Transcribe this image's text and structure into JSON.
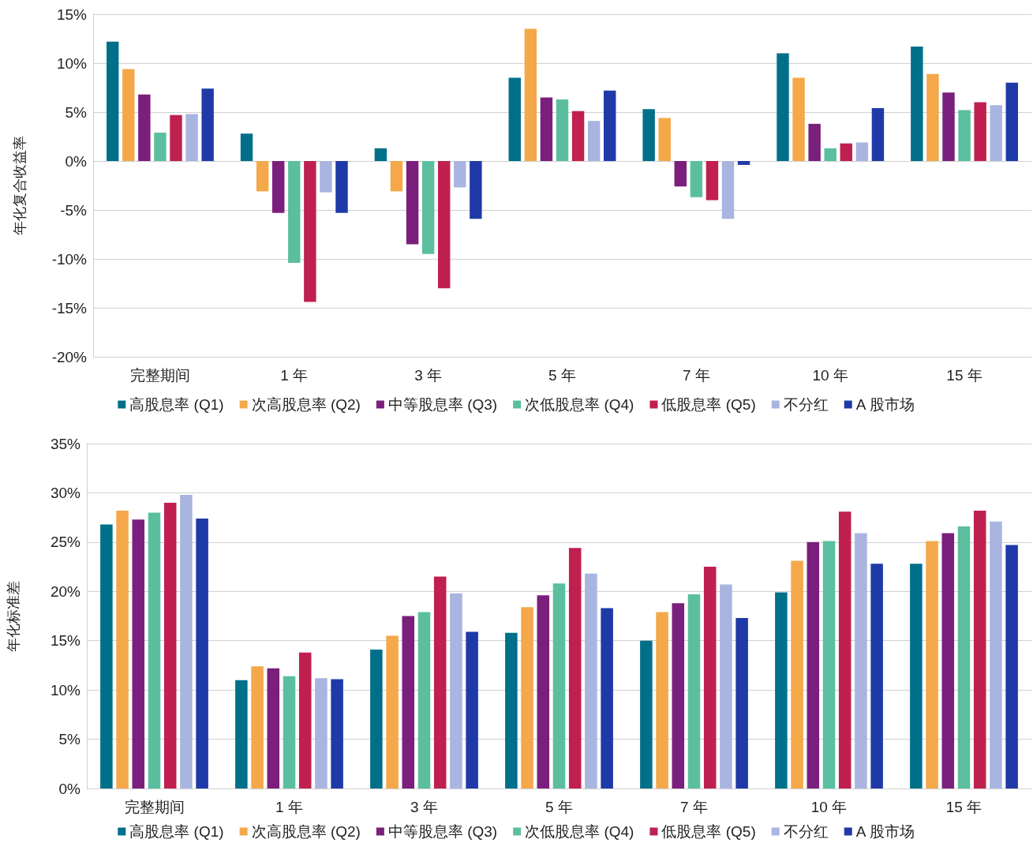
{
  "chart_data": [
    {
      "type": "bar",
      "ylabel": "年化复合收益率",
      "categories": [
        "完整期间",
        "1 年",
        "3 年",
        "5 年",
        "7 年",
        "10 年",
        "15 年"
      ],
      "series": [
        {
          "name": "高股息率 (Q1)",
          "color": "#00708a",
          "values": [
            12.2,
            2.8,
            1.3,
            8.5,
            5.3,
            11.0,
            11.7
          ]
        },
        {
          "name": "次高股息率 (Q2)",
          "color": "#f4a84a",
          "values": [
            9.4,
            -3.1,
            -3.1,
            13.5,
            4.4,
            8.5,
            8.9
          ]
        },
        {
          "name": "中等股息率 (Q3)",
          "color": "#7a1f7c",
          "values": [
            6.8,
            -5.3,
            -8.5,
            6.5,
            -2.6,
            3.8,
            7.0
          ]
        },
        {
          "name": "次低股息率 (Q4)",
          "color": "#5bbf9f",
          "values": [
            2.9,
            -10.4,
            -9.5,
            6.3,
            -3.7,
            1.3,
            5.2
          ]
        },
        {
          "name": "低股息率 (Q5)",
          "color": "#c0204f",
          "values": [
            4.7,
            -14.4,
            -13.0,
            5.1,
            -4.0,
            1.8,
            6.0
          ]
        },
        {
          "name": "不分红",
          "color": "#a9b5e0",
          "values": [
            4.8,
            -3.2,
            -2.7,
            4.1,
            -5.9,
            1.9,
            5.7
          ]
        },
        {
          "name": "A 股市场",
          "color": "#1f3aa8",
          "values": [
            7.4,
            -5.3,
            -5.9,
            7.2,
            -0.4,
            5.4,
            8.0
          ]
        }
      ],
      "ylim": [
        -20,
        15
      ],
      "yticks": [
        {
          "value": -20,
          "label": "-20%"
        },
        {
          "value": -15,
          "label": "-15%"
        },
        {
          "value": -10,
          "label": "-10%"
        },
        {
          "value": -5,
          "label": "-5%"
        },
        {
          "value": 0,
          "label": "0%"
        },
        {
          "value": 5,
          "label": "5%"
        },
        {
          "value": 10,
          "label": "10%"
        },
        {
          "value": 15,
          "label": "15%"
        }
      ],
      "grid": "y",
      "legend": "bottom"
    },
    {
      "type": "bar",
      "ylabel": "年化标准差",
      "categories": [
        "完整期间",
        "1 年",
        "3 年",
        "5 年",
        "7 年",
        "10 年",
        "15 年"
      ],
      "series": [
        {
          "name": "高股息率 (Q1)",
          "color": "#00708a",
          "values": [
            26.8,
            11.0,
            14.1,
            15.8,
            15.0,
            19.9,
            22.8
          ]
        },
        {
          "name": "次高股息率 (Q2)",
          "color": "#f4a84a",
          "values": [
            28.2,
            12.4,
            15.5,
            18.4,
            17.9,
            23.1,
            25.1
          ]
        },
        {
          "name": "中等股息率 (Q3)",
          "color": "#7a1f7c",
          "values": [
            27.3,
            12.2,
            17.5,
            19.6,
            18.8,
            25.0,
            25.9
          ]
        },
        {
          "name": "次低股息率 (Q4)",
          "color": "#5bbf9f",
          "values": [
            28.0,
            11.4,
            17.9,
            20.8,
            19.7,
            25.1,
            26.6
          ]
        },
        {
          "name": "低股息率 (Q5)",
          "color": "#c0204f",
          "values": [
            29.0,
            13.8,
            21.5,
            24.4,
            22.5,
            28.1,
            28.2
          ]
        },
        {
          "name": "不分红",
          "color": "#a9b5e0",
          "values": [
            29.8,
            11.2,
            19.8,
            21.8,
            20.7,
            25.9,
            27.1
          ]
        },
        {
          "name": "A 股市场",
          "color": "#1f3aa8",
          "values": [
            27.4,
            11.1,
            15.9,
            18.3,
            17.3,
            22.8,
            24.7
          ]
        }
      ],
      "ylim": [
        0,
        35
      ],
      "yticks": [
        {
          "value": 0,
          "label": "0%"
        },
        {
          "value": 5,
          "label": "5%"
        },
        {
          "value": 10,
          "label": "10%"
        },
        {
          "value": 15,
          "label": "15%"
        },
        {
          "value": 20,
          "label": "20%"
        },
        {
          "value": 25,
          "label": "25%"
        },
        {
          "value": 30,
          "label": "30%"
        },
        {
          "value": 35,
          "label": "35%"
        }
      ],
      "grid": "y",
      "legend": "bottom"
    }
  ]
}
